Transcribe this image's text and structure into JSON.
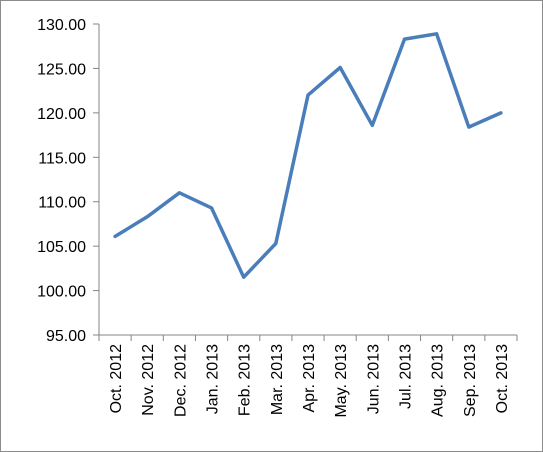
{
  "chart_data": {
    "type": "line",
    "categories": [
      "Oct. 2012",
      "Nov. 2012",
      "Dec. 2012",
      "Jan. 2013",
      "Feb. 2013",
      "Mar. 2013",
      "Apr. 2013",
      "May. 2013",
      "Jun. 2013",
      "Jul. 2013",
      "Aug. 2013",
      "Sep. 2013",
      "Oct. 2013"
    ],
    "series": [
      {
        "values": [
          106.1,
          108.3,
          111.0,
          109.3,
          101.5,
          105.3,
          122.0,
          125.1,
          118.6,
          128.3,
          128.9,
          118.4,
          120.0
        ]
      }
    ],
    "ylim": [
      95,
      130
    ],
    "yticks": [
      "95.00",
      "100.00",
      "105.00",
      "110.00",
      "115.00",
      "120.00",
      "125.00",
      "130.00"
    ],
    "title": "",
    "xlabel": "",
    "ylabel": "",
    "grid": false,
    "legend": "none",
    "line_color": "#4a7ebb",
    "axis_color": "#868686"
  }
}
